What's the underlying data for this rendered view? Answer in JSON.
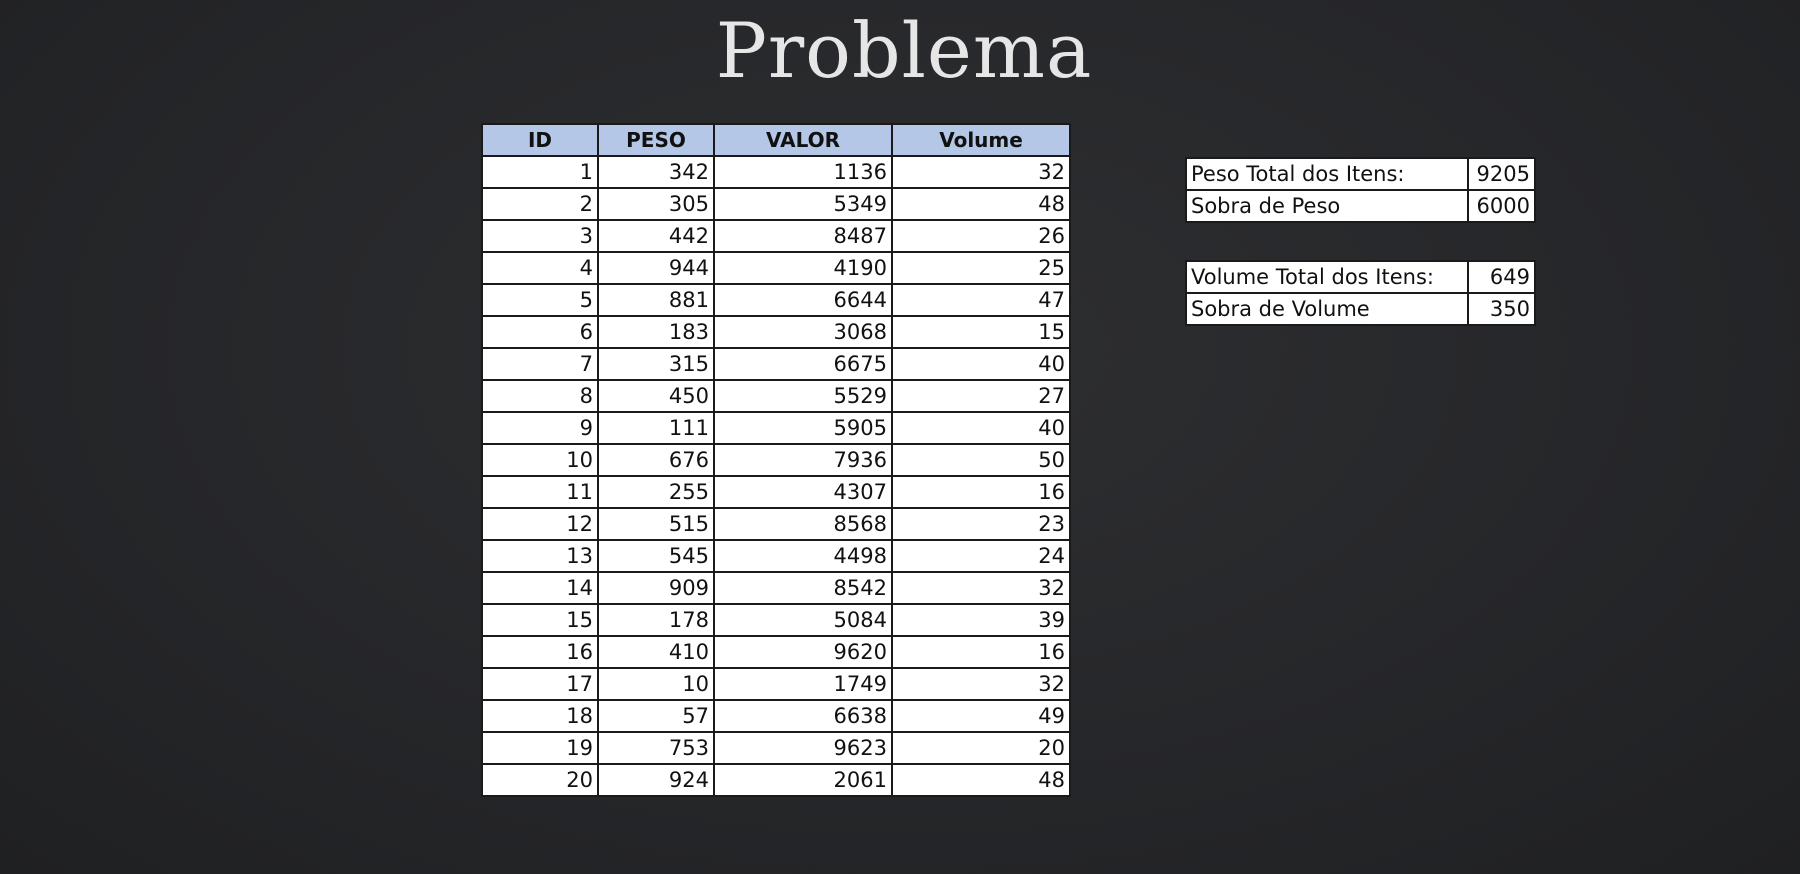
{
  "title": "Problema",
  "items_table": {
    "headers": [
      "ID",
      "PESO",
      "VALOR",
      "Volume"
    ],
    "rows": [
      [
        "1",
        "342",
        "1136",
        "32"
      ],
      [
        "2",
        "305",
        "5349",
        "48"
      ],
      [
        "3",
        "442",
        "8487",
        "26"
      ],
      [
        "4",
        "944",
        "4190",
        "25"
      ],
      [
        "5",
        "881",
        "6644",
        "47"
      ],
      [
        "6",
        "183",
        "3068",
        "15"
      ],
      [
        "7",
        "315",
        "6675",
        "40"
      ],
      [
        "8",
        "450",
        "5529",
        "27"
      ],
      [
        "9",
        "111",
        "5905",
        "40"
      ],
      [
        "10",
        "676",
        "7936",
        "50"
      ],
      [
        "11",
        "255",
        "4307",
        "16"
      ],
      [
        "12",
        "515",
        "8568",
        "23"
      ],
      [
        "13",
        "545",
        "4498",
        "24"
      ],
      [
        "14",
        "909",
        "8542",
        "32"
      ],
      [
        "15",
        "178",
        "5084",
        "39"
      ],
      [
        "16",
        "410",
        "9620",
        "16"
      ],
      [
        "17",
        "10",
        "1749",
        "32"
      ],
      [
        "18",
        "57",
        "6638",
        "49"
      ],
      [
        "19",
        "753",
        "9623",
        "20"
      ],
      [
        "20",
        "924",
        "2061",
        "48"
      ]
    ]
  },
  "weight_summary": [
    {
      "label": "Peso Total dos Itens:",
      "value": "9205"
    },
    {
      "label": "Sobra de Peso",
      "value": "6000"
    }
  ],
  "volume_summary": [
    {
      "label": "Volume Total dos Itens:",
      "value": "649"
    },
    {
      "label": "Sobra de Volume",
      "value": "350"
    }
  ],
  "colors": {
    "header_fill": "#b4c7e7",
    "background": "#2a2b2d",
    "title_text": "#e6e6e6"
  }
}
